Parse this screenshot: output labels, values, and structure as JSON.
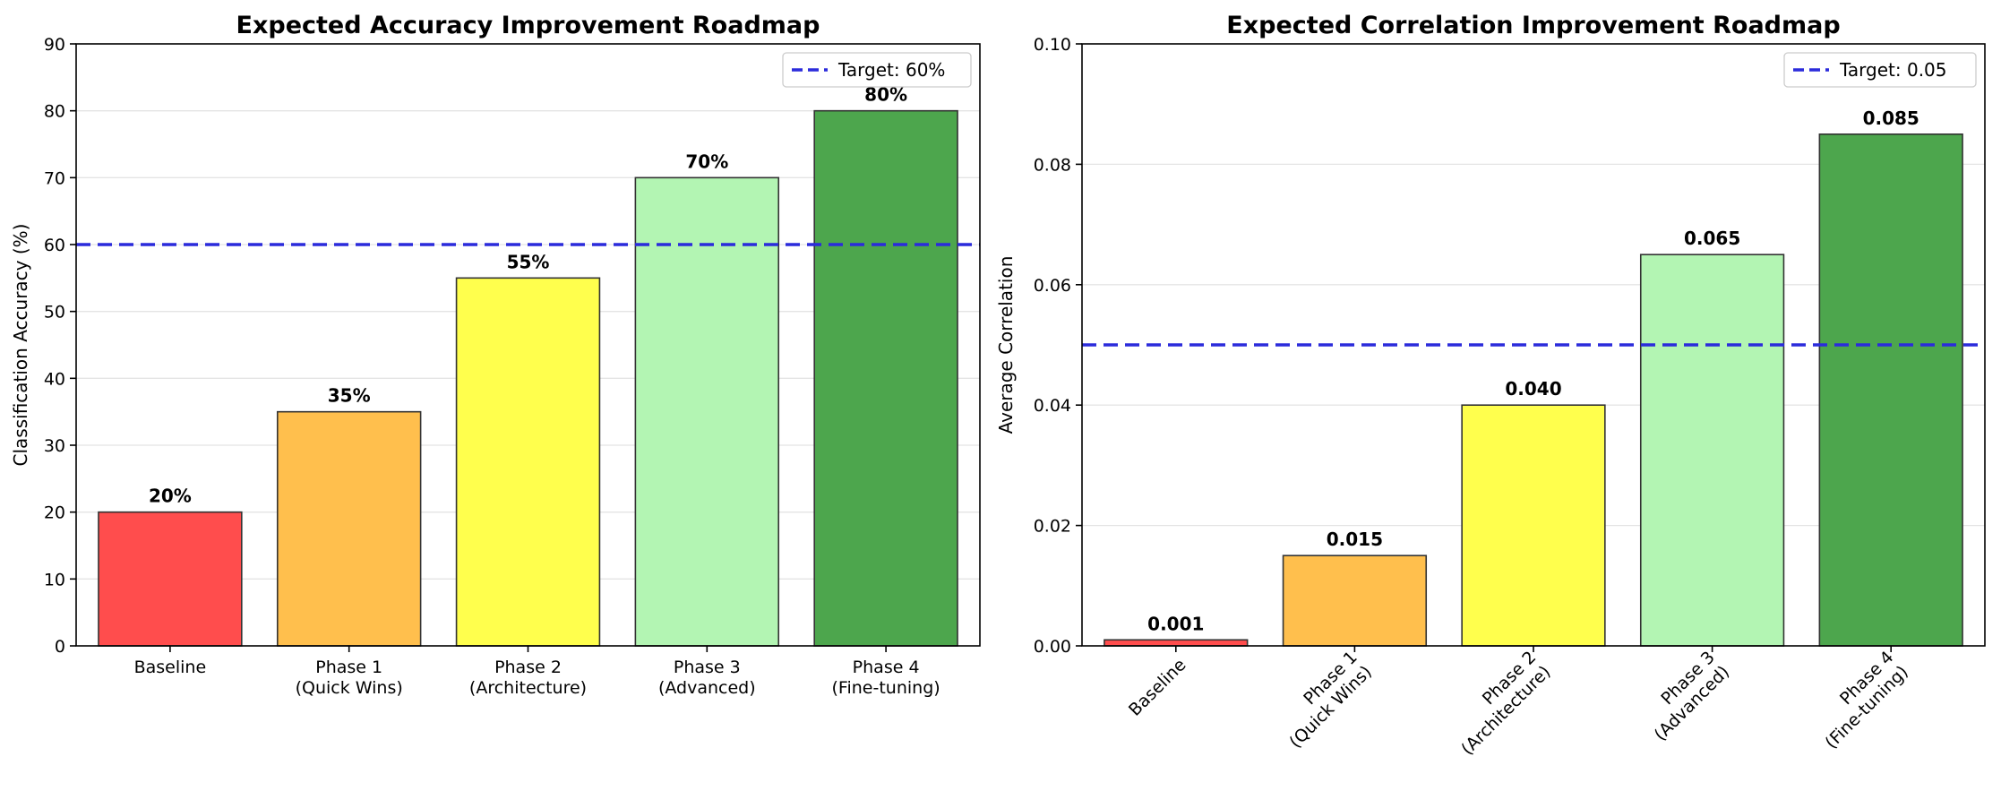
{
  "chart_data": [
    {
      "type": "bar",
      "title": "Expected Accuracy Improvement Roadmap",
      "xlabel": "",
      "ylabel": "Classification Accuracy (%)",
      "categories": [
        "Baseline",
        "Phase 1\n(Quick Wins)",
        "Phase 2\n(Architecture)",
        "Phase 3\n(Advanced)",
        "Phase 4\n(Fine-tuning)"
      ],
      "values": [
        20,
        35,
        55,
        70,
        80
      ],
      "bar_labels": [
        "20%",
        "35%",
        "55%",
        "70%",
        "80%"
      ],
      "colors": [
        "#ff4d4d",
        "#ffbf4d",
        "#ffff4d",
        "#b3f5b3",
        "#4da64d"
      ],
      "ylim": [
        0,
        90
      ],
      "yticks": [
        0,
        10,
        20,
        30,
        40,
        50,
        60,
        70,
        80,
        90
      ],
      "ytick_labels": [
        "0",
        "10",
        "20",
        "30",
        "40",
        "50",
        "60",
        "70",
        "80",
        "90"
      ],
      "xtick_rotation": 0,
      "target": {
        "value": 60,
        "label": "Target: 60%",
        "color": "#2b2bdb"
      },
      "grid": "y",
      "legend": "upper-right"
    },
    {
      "type": "bar",
      "title": "Expected Correlation Improvement Roadmap",
      "xlabel": "",
      "ylabel": "Average Correlation",
      "categories": [
        "Baseline",
        "Phase 1\n(Quick Wins)",
        "Phase 2\n(Architecture)",
        "Phase 3\n(Advanced)",
        "Phase 4\n(Fine-tuning)"
      ],
      "values": [
        0.001,
        0.015,
        0.04,
        0.065,
        0.085
      ],
      "bar_labels": [
        "0.001",
        "0.015",
        "0.040",
        "0.065",
        "0.085"
      ],
      "colors": [
        "#ff4d4d",
        "#ffbf4d",
        "#ffff4d",
        "#b3f5b3",
        "#4da64d"
      ],
      "ylim": [
        0,
        0.1
      ],
      "yticks": [
        0,
        0.02,
        0.04,
        0.06,
        0.08,
        0.1
      ],
      "ytick_labels": [
        "0.00",
        "0.02",
        "0.04",
        "0.06",
        "0.08",
        "0.10"
      ],
      "xtick_rotation": -45,
      "target": {
        "value": 0.05,
        "label": "Target: 0.05",
        "color": "#2b2bdb"
      },
      "grid": "y",
      "legend": "upper-right"
    }
  ]
}
